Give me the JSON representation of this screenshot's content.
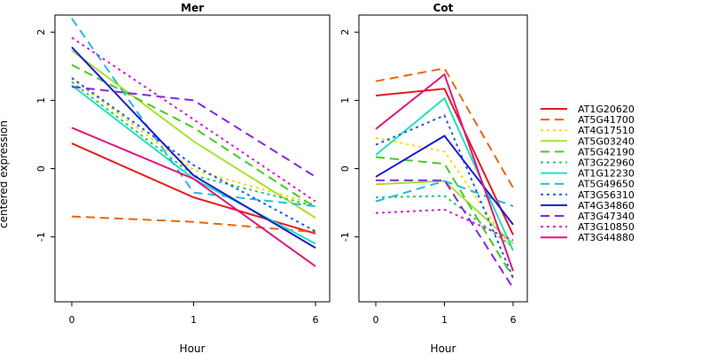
{
  "chart_data": {
    "type": "line",
    "ylabel": "centered expression",
    "xlabel": "Hour",
    "x": [
      "0",
      "1",
      "6"
    ],
    "ylim": [
      -1.95,
      2.25
    ],
    "yticks": [
      -1,
      0,
      1,
      2
    ],
    "grid": false,
    "legend_position": "right",
    "series": [
      {
        "name": "AT1G20620",
        "color": "#e41a1c",
        "dash": "solid"
      },
      {
        "name": "AT5G41700",
        "color": "#e8660c",
        "dash": "dashed"
      },
      {
        "name": "AT4G17510",
        "color": "#ffd700",
        "dash": "dotted"
      },
      {
        "name": "AT5G03240",
        "color": "#a6e22e",
        "dash": "solid"
      },
      {
        "name": "AT5G42190",
        "color": "#44cc22",
        "dash": "dashed"
      },
      {
        "name": "AT3G22960",
        "color": "#22cc66",
        "dash": "dotted"
      },
      {
        "name": "AT1G12230",
        "color": "#22e0c0",
        "dash": "solid"
      },
      {
        "name": "AT5G49650",
        "color": "#22b8e8",
        "dash": "dashed"
      },
      {
        "name": "AT3G56310",
        "color": "#1e5ae6",
        "dash": "dotted"
      },
      {
        "name": "AT4G34860",
        "color": "#1a1ad2",
        "dash": "solid"
      },
      {
        "name": "AT3G47340",
        "color": "#8822e6",
        "dash": "dashed"
      },
      {
        "name": "AT3G10850",
        "color": "#cc22dd",
        "dash": "dotted"
      },
      {
        "name": "AT3G44880",
        "color": "#e0157a",
        "dash": "solid"
      }
    ],
    "panels": [
      {
        "title": "Mer",
        "values": [
          [
            0.37,
            -0.42,
            -0.95
          ],
          [
            -0.7,
            -0.78,
            -0.93
          ],
          [
            1.32,
            -0.02,
            -0.52
          ],
          [
            1.73,
            0.4,
            -0.72
          ],
          [
            1.52,
            0.6,
            -0.57
          ],
          [
            1.27,
            -0.1,
            -0.55
          ],
          [
            1.22,
            -0.15,
            -1.1
          ],
          [
            2.2,
            -0.35,
            -0.55
          ],
          [
            1.33,
            0.05,
            -0.92
          ],
          [
            1.78,
            -0.1,
            -1.16
          ],
          [
            1.2,
            1.0,
            -0.12
          ],
          [
            1.92,
            0.72,
            -0.48
          ],
          [
            0.6,
            -0.15,
            -1.43
          ]
        ]
      },
      {
        "title": "Cot",
        "values": [
          [
            1.07,
            1.17,
            -0.97
          ],
          [
            1.28,
            1.47,
            -0.28
          ],
          [
            0.45,
            0.25,
            -1.2
          ],
          [
            -0.23,
            -0.18,
            -1.1
          ],
          [
            0.17,
            0.07,
            -1.6
          ],
          [
            -0.42,
            -0.4,
            -1.15
          ],
          [
            0.2,
            1.03,
            -1.2
          ],
          [
            -0.48,
            -0.18,
            -0.55
          ],
          [
            0.35,
            0.78,
            -1.6
          ],
          [
            -0.12,
            0.48,
            -0.82
          ],
          [
            -0.17,
            -0.17,
            -1.75
          ],
          [
            -0.65,
            -0.6,
            -1.05
          ],
          [
            0.58,
            1.38,
            -1.5
          ]
        ]
      }
    ]
  }
}
